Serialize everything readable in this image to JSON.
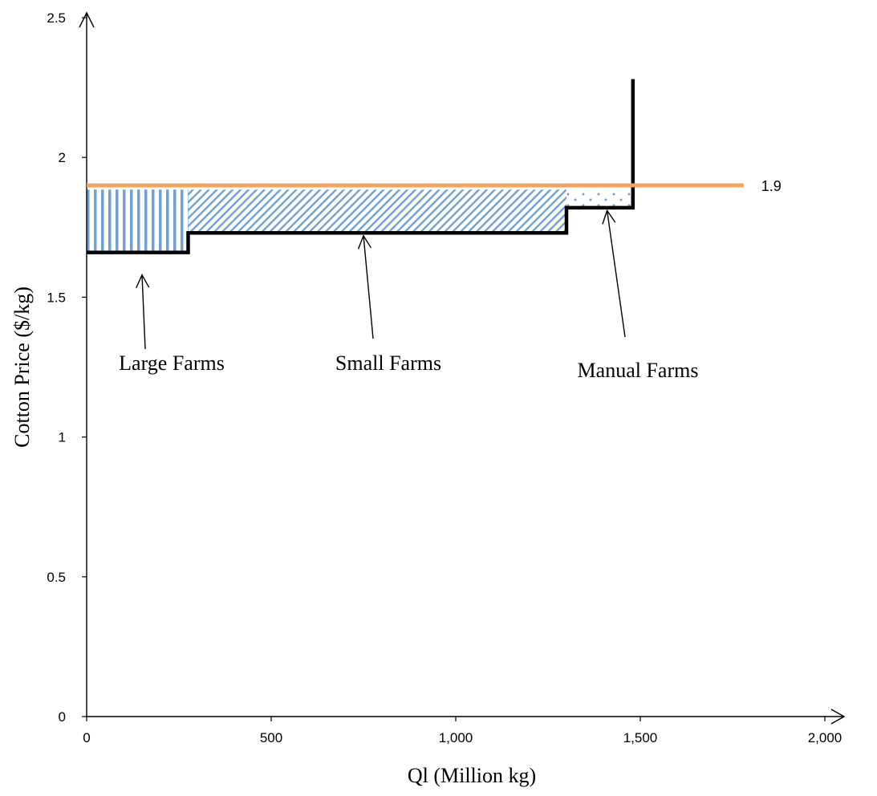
{
  "chart_data": {
    "type": "line",
    "xlabel": "Ql (Million kg)",
    "ylabel": "Cotton Price ($/kg)",
    "xlim": [
      0,
      2000
    ],
    "ylim": [
      0,
      2.5
    ],
    "x_ticks": [
      0,
      500,
      1000,
      1500,
      2000
    ],
    "x_tick_labels": [
      "0",
      "500",
      "1,000",
      "1,500",
      "2,000"
    ],
    "y_ticks": [
      0,
      0.5,
      1,
      1.5,
      2,
      2.5
    ],
    "y_tick_labels": [
      "0",
      "0.5",
      "1",
      "1.5",
      "2",
      "2.5"
    ],
    "grid": false,
    "colors": {
      "supply": "#000000",
      "price": "#f4a460",
      "hatch": "#6fa0d8",
      "axis": "#000000"
    },
    "series": [
      {
        "role": "supply-curve",
        "x": [
          0,
          275,
          275,
          1300,
          1300,
          1480,
          1480
        ],
        "y": [
          1.66,
          1.66,
          1.73,
          1.73,
          1.82,
          1.82,
          2.28
        ]
      },
      {
        "role": "price-line",
        "x": [
          0,
          1780
        ],
        "y": [
          1.9,
          1.9
        ]
      }
    ],
    "price_label": "1.9",
    "regions": [
      {
        "x": [
          0,
          275
        ],
        "y": [
          1.66,
          1.885
        ],
        "pattern": "vertical-lines"
      },
      {
        "x": [
          275,
          1300
        ],
        "y": [
          1.73,
          1.885
        ],
        "pattern": "diagonal-lines"
      },
      {
        "x": [
          1300,
          1480
        ],
        "y": [
          1.82,
          1.885
        ],
        "pattern": "dots"
      }
    ],
    "annotations": [
      {
        "text": "Large Farms",
        "arrow_to": [
          150,
          1.58
        ]
      },
      {
        "text": "Small Farms",
        "arrow_to": [
          750,
          1.72
        ]
      },
      {
        "text": "Manual Farms",
        "arrow_to": [
          1410,
          1.81
        ]
      }
    ]
  }
}
